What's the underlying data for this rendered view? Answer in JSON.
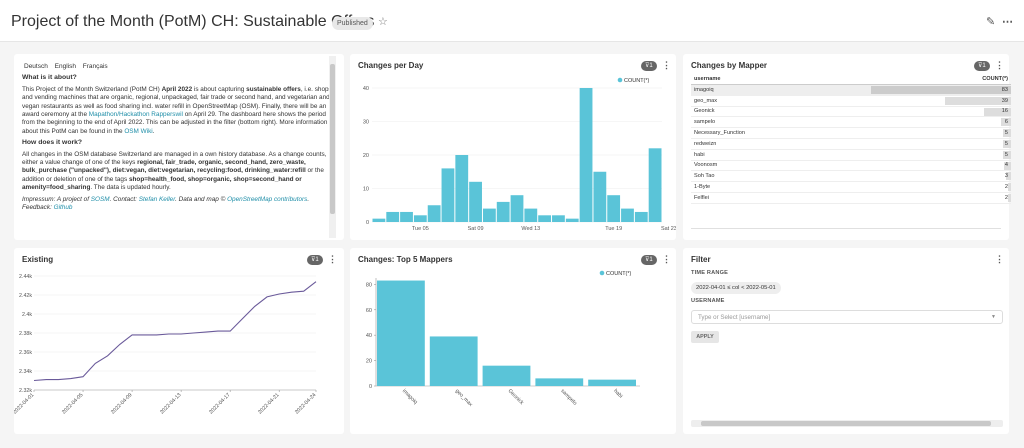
{
  "header": {
    "title": "Project of the Month (PotM) CH: Sustainable Offers",
    "status": "Published",
    "star_icon": "star-icon",
    "edit_icon": "pencil-icon",
    "more_icon": "more-icon"
  },
  "about": {
    "languages": [
      "Deutsch",
      "English",
      "Français"
    ],
    "h1": "What is it about?",
    "p1_a": "This Project of the Month Switzerland (PotM CH) ",
    "p1_b": "April 2022",
    "p1_c": " is about capturing ",
    "p1_d": "sustainable offers",
    "p1_e": ", i.e. shops and vending machines that are organic, regional, unpackaged, fair trade or second hand, and vegetarian and vegan restaurants as well as food sharing incl. water refill in OpenStreetMap (OSM). Finally, there will be an award ceremony at the ",
    "p1_link": "Mapathon/Hackathon Rapperswil",
    "p1_f": " on April 29. The dashboard here shows the period from the beginning to the end of April 2022. This can be adjusted in the filter (bottom right). More information about this PotM can be found in the ",
    "p1_link2": "OSM Wiki",
    "p1_g": ".",
    "h2": "How does it work?",
    "p2_a": "All changes in the OSM database Switzerland are managed in a own history database. As a change counts, either a value change of one of the keys ",
    "p2_b": "regional, fair_trade, organic, second_hand, zero_waste, bulk_purchase (\"unpacked\"), diet:vegan, diet:vegetarian, recycling:food, drinking_water:refill",
    "p2_c": " or the addition or deletion of one of the tags ",
    "p2_d": "shop=health_food, shop=organic, shop=second_hand or amenity=food_sharing",
    "p2_e": ". The data is updated hourly.",
    "p3_a": "Impressum: A project of ",
    "p3_link1": "SOSM",
    "p3_b": ". Contact: ",
    "p3_link2": "Stefan Keller",
    "p3_c": ". Data and map © ",
    "p3_link3": "OpenStreetMap contributors",
    "p3_d": ". Feedback: ",
    "p3_link4": "Github"
  },
  "changes_per_day": {
    "title": "Changes per Day",
    "filter_badge": "1",
    "chart_data": {
      "type": "bar",
      "legend": [
        "COUNT(*)"
      ],
      "ylim": [
        0,
        40
      ],
      "yticks": [
        0,
        10,
        20,
        30,
        40
      ],
      "xticks": [
        "Tue 05",
        "Sat 09",
        "Wed 13",
        "Tue 19",
        "Sat 23"
      ],
      "values": [
        1,
        3,
        3,
        2,
        5,
        16,
        20,
        12,
        4,
        6,
        8,
        4,
        2,
        2,
        1,
        40,
        15,
        8,
        4,
        3,
        22
      ]
    }
  },
  "changes_by_mapper": {
    "title": "Changes by Mapper",
    "filter_badge": "1",
    "columns": [
      "username",
      "COUNT(*)"
    ],
    "rows": [
      {
        "username": "imagoiq",
        "count": "83",
        "value": 83
      },
      {
        "username": "geo_max",
        "count": "39",
        "value": 39
      },
      {
        "username": "Geonick",
        "count": "16",
        "value": 16
      },
      {
        "username": "sampelo",
        "count": "6",
        "value": 6
      },
      {
        "username": "Necessary_Function",
        "count": "5",
        "value": 5
      },
      {
        "username": "redweizn",
        "count": "5",
        "value": 5
      },
      {
        "username": "habi",
        "count": "5",
        "value": 5
      },
      {
        "username": "Voonosm",
        "count": "4",
        "value": 4
      },
      {
        "username": "Soh Tao",
        "count": "3",
        "value": 3
      },
      {
        "username": "1-Byte",
        "count": "2",
        "value": 2
      },
      {
        "username": "Felflei",
        "count": "2",
        "value": 2
      }
    ]
  },
  "existing": {
    "title": "Existing",
    "filter_badge": "1",
    "chart_data": {
      "type": "line",
      "ylim": [
        2320,
        2440
      ],
      "yticks": [
        "2.32k",
        "2.34k",
        "2.36k",
        "2.38k",
        "2.4k",
        "2.42k",
        "2.44k"
      ],
      "xticks": [
        "2022-04-01",
        "2022-04-05",
        "2022-04-09",
        "2022-04-13",
        "2022-04-17",
        "2022-04-21",
        "2022-04-24"
      ],
      "values": [
        2330,
        2331,
        2331,
        2332,
        2334,
        2348,
        2356,
        2368,
        2378,
        2378,
        2378,
        2379,
        2379,
        2380,
        2381,
        2382,
        2382,
        2395,
        2408,
        2418,
        2421,
        2423,
        2424,
        2434
      ]
    }
  },
  "top5": {
    "title": "Changes: Top 5 Mappers",
    "filter_badge": "1",
    "chart_data": {
      "type": "bar",
      "legend": [
        "COUNT(*)"
      ],
      "ylim": [
        0,
        85
      ],
      "yticks": [
        0,
        20,
        40,
        60,
        80
      ],
      "categories": [
        "imagoiq",
        "geo_max",
        "Geonick",
        "sampelo",
        "habi"
      ],
      "values": [
        83,
        39,
        16,
        6,
        5
      ]
    }
  },
  "filter": {
    "title": "Filter",
    "time_range_label": "TIME RANGE",
    "time_range_value": "2022-04-01 ≤ col < 2022-05-01",
    "username_label": "USERNAME",
    "username_placeholder": "Type or Select [username]",
    "apply_label": "APPLY"
  }
}
